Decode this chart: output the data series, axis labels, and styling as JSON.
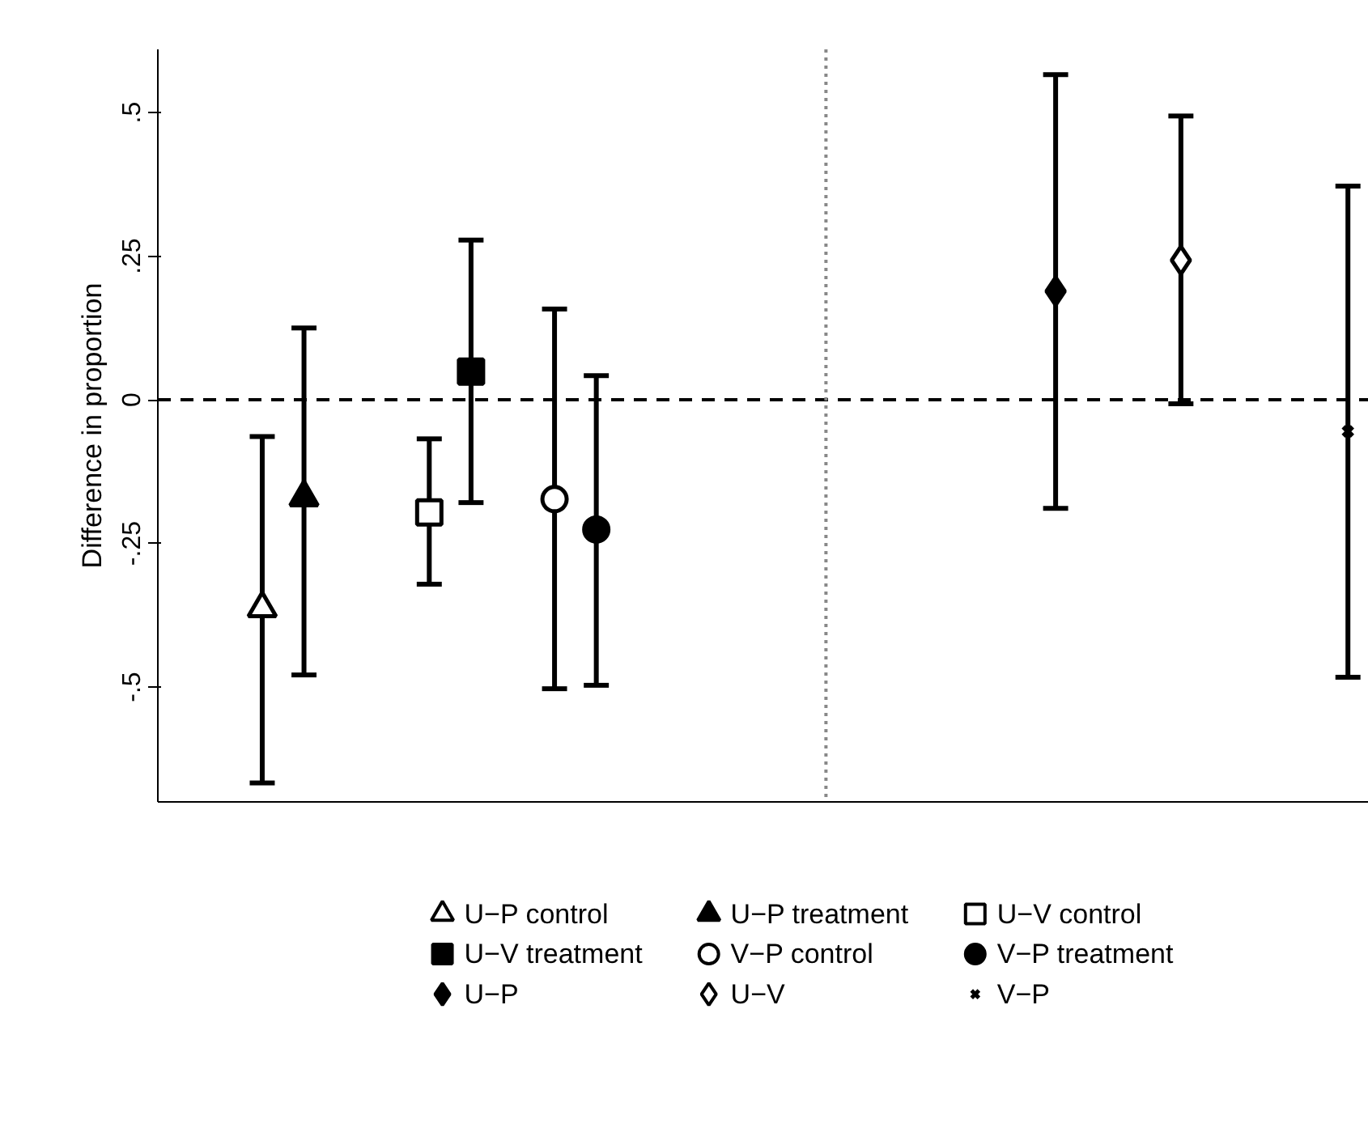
{
  "chart_data": {
    "type": "scatter",
    "ylabel": "Difference in proportion",
    "categories": [
      null,
      null,
      null,
      null,
      null,
      null,
      null,
      null,
      null,
      null,
      null,
      null,
      null,
      null,
      null,
      null,
      null,
      null,
      null,
      null,
      null,
      null,
      null,
      null,
      null,
      null,
      null,
      null,
      null
    ],
    "ylim": [
      -0.7,
      0.61
    ],
    "yticks": [
      {
        "value": -0.5,
        "label": "-.5"
      },
      {
        "value": -0.25,
        "label": "-.25"
      },
      {
        "value": 0,
        "label": "0"
      },
      {
        "value": 0.25,
        "label": ".25"
      },
      {
        "value": 0.5,
        "label": ".5"
      }
    ],
    "tick_labels": "y",
    "legend": "bottom",
    "ref_lines": [
      {
        "axis": "y",
        "value": 0,
        "line_style": "dashed",
        "color": "#000000"
      }
    ],
    "series": [
      {
        "name": "U−P control",
        "color": "#ffffff",
        "marker": "triangle",
        "values": [
          null,
          null,
          -0.363,
          null,
          null,
          null,
          null,
          null,
          null,
          null,
          null,
          null,
          null,
          null,
          null,
          null,
          null,
          null,
          null,
          null,
          null,
          null,
          null,
          null,
          null,
          null,
          null,
          null,
          null
        ],
        "errors": [
          null,
          null,
          [
            -0.667,
            -0.064
          ],
          null,
          null,
          null,
          null,
          null,
          null,
          null,
          null,
          null,
          null,
          null,
          null,
          null,
          null,
          null,
          null,
          null,
          null,
          null,
          null,
          null,
          null,
          null,
          null,
          null,
          null
        ]
      },
      {
        "name": "U−P treatment",
        "color": "#000000",
        "marker": "triangle",
        "values": [
          null,
          null,
          null,
          -0.17,
          null,
          null,
          null,
          null,
          null,
          null,
          null,
          null,
          null,
          null,
          null,
          null,
          null,
          null,
          null,
          null,
          null,
          null,
          null,
          null,
          null,
          null,
          null,
          null,
          null
        ],
        "errors": [
          null,
          null,
          null,
          [
            -0.479,
            0.125
          ],
          null,
          null,
          null,
          null,
          null,
          null,
          null,
          null,
          null,
          null,
          null,
          null,
          null,
          null,
          null,
          null,
          null,
          null,
          null,
          null,
          null,
          null,
          null,
          null,
          null
        ]
      },
      {
        "name": "U−V control",
        "color": "#ffffff",
        "marker": "square",
        "values": [
          null,
          null,
          null,
          null,
          null,
          null,
          -0.196,
          null,
          null,
          null,
          null,
          null,
          null,
          null,
          null,
          null,
          null,
          null,
          null,
          null,
          null,
          null,
          null,
          null,
          null,
          null,
          null,
          null,
          null
        ],
        "errors": [
          null,
          null,
          null,
          null,
          null,
          null,
          [
            -0.321,
            -0.068
          ],
          null,
          null,
          null,
          null,
          null,
          null,
          null,
          null,
          null,
          null,
          null,
          null,
          null,
          null,
          null,
          null,
          null,
          null,
          null,
          null,
          null,
          null
        ]
      },
      {
        "name": "U−V treatment",
        "color": "#000000",
        "marker": "square",
        "values": [
          null,
          null,
          null,
          null,
          null,
          null,
          null,
          0.049,
          null,
          null,
          null,
          null,
          null,
          null,
          null,
          null,
          null,
          null,
          null,
          null,
          null,
          null,
          null,
          null,
          null,
          null,
          null,
          null,
          null
        ],
        "errors": [
          null,
          null,
          null,
          null,
          null,
          null,
          null,
          [
            -0.179,
            0.278
          ],
          null,
          null,
          null,
          null,
          null,
          null,
          null,
          null,
          null,
          null,
          null,
          null,
          null,
          null,
          null,
          null,
          null,
          null,
          null,
          null,
          null
        ]
      },
      {
        "name": "V−P control",
        "color": "#ffffff",
        "marker": "circle",
        "values": [
          null,
          null,
          null,
          null,
          null,
          null,
          null,
          null,
          null,
          -0.173,
          null,
          null,
          null,
          null,
          null,
          null,
          null,
          null,
          null,
          null,
          null,
          null,
          null,
          null,
          null,
          null,
          null,
          null,
          null
        ],
        "errors": [
          null,
          null,
          null,
          null,
          null,
          null,
          null,
          null,
          null,
          [
            -0.503,
            0.158
          ],
          null,
          null,
          null,
          null,
          null,
          null,
          null,
          null,
          null,
          null,
          null,
          null,
          null,
          null,
          null,
          null,
          null,
          null,
          null
        ]
      },
      {
        "name": "V−P treatment",
        "color": "#000000",
        "marker": "circle",
        "values": [
          null,
          null,
          null,
          null,
          null,
          null,
          null,
          null,
          null,
          null,
          -0.226,
          null,
          null,
          null,
          null,
          null,
          null,
          null,
          null,
          null,
          null,
          null,
          null,
          null,
          null,
          null,
          null,
          null,
          null
        ],
        "errors": [
          null,
          null,
          null,
          null,
          null,
          null,
          null,
          null,
          null,
          null,
          [
            -0.497,
            0.042
          ],
          null,
          null,
          null,
          null,
          null,
          null,
          null,
          null,
          null,
          null,
          null,
          null,
          null,
          null,
          null,
          null,
          null,
          null
        ]
      },
      {
        "name": "U−P",
        "color": "#000000",
        "marker": "diamond",
        "values": [
          null,
          null,
          null,
          null,
          null,
          null,
          null,
          null,
          null,
          null,
          null,
          null,
          null,
          null,
          null,
          null,
          null,
          null,
          null,
          null,
          null,
          0.189,
          null,
          null,
          null,
          null,
          null,
          null,
          null
        ],
        "errors": [
          null,
          null,
          null,
          null,
          null,
          null,
          null,
          null,
          null,
          null,
          null,
          null,
          null,
          null,
          null,
          null,
          null,
          null,
          null,
          null,
          null,
          [
            -0.189,
            0.566
          ],
          null,
          null,
          null,
          null,
          null,
          null,
          null
        ]
      },
      {
        "name": "U−V",
        "color": "#ffffff",
        "marker": "diamond",
        "values": [
          null,
          null,
          null,
          null,
          null,
          null,
          null,
          null,
          null,
          null,
          null,
          null,
          null,
          null,
          null,
          null,
          null,
          null,
          null,
          null,
          null,
          null,
          null,
          null,
          0.243,
          null,
          null,
          null,
          null
        ],
        "errors": [
          null,
          null,
          null,
          null,
          null,
          null,
          null,
          null,
          null,
          null,
          null,
          null,
          null,
          null,
          null,
          null,
          null,
          null,
          null,
          null,
          null,
          null,
          null,
          null,
          [
            -0.007,
            0.494
          ],
          null,
          null,
          null,
          null
        ]
      },
      {
        "name": "V−P",
        "color": "#000000",
        "marker": "cross",
        "values": [
          null,
          null,
          null,
          null,
          null,
          null,
          null,
          null,
          null,
          null,
          null,
          null,
          null,
          null,
          null,
          null,
          null,
          null,
          null,
          null,
          null,
          null,
          null,
          null,
          null,
          null,
          null,
          null,
          -0.055
        ],
        "errors": [
          null,
          null,
          null,
          null,
          null,
          null,
          null,
          null,
          null,
          null,
          null,
          null,
          null,
          null,
          null,
          null,
          null,
          null,
          null,
          null,
          null,
          null,
          null,
          null,
          null,
          null,
          null,
          null,
          [
            -0.483,
            0.372
          ]
        ]
      }
    ]
  }
}
